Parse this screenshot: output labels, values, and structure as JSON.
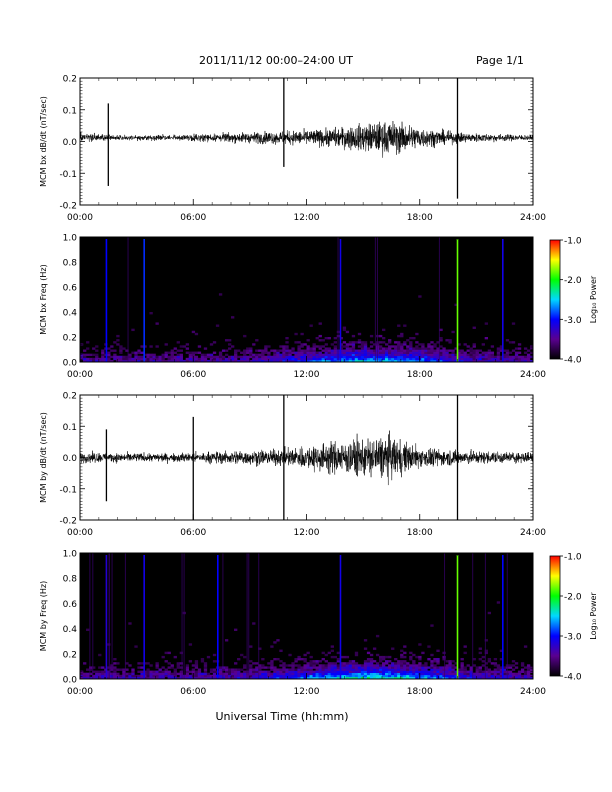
{
  "header": {
    "title": "2011/11/12   00:00–24:00 UT",
    "page": "Page 1/1"
  },
  "xlabel": "Universal Time (hh:mm)",
  "colorbar": {
    "label": "Log₁₀ Power",
    "ticks": [
      "-1.0",
      "-2.0",
      "-3.0",
      "-4.0"
    ],
    "range": [
      -4.0,
      -1.0
    ],
    "colors": [
      "#000000",
      "#5a0090",
      "#0000ff",
      "#00d8ff",
      "#00ff00",
      "#ffff00",
      "#ff0000"
    ]
  },
  "chart_data": [
    {
      "type": "line",
      "ylabel": "MCM bx dB/dt (nT/sec)",
      "x_ticks": [
        "00:00",
        "06:00",
        "12:00",
        "18:00",
        "24:00"
      ],
      "y_ticks": [
        "0.2",
        "0.1",
        "0.0",
        "-0.1",
        "-0.2"
      ],
      "xlim": [
        0,
        24
      ],
      "ylim": [
        -0.2,
        0.2
      ],
      "series": [
        {
          "x": [
            0,
            1.5,
            3,
            4.5,
            6,
            7.5,
            9,
            10.5,
            12,
            13,
            14,
            15,
            16,
            16.5,
            17,
            18,
            19,
            20,
            21,
            22,
            23,
            24
          ],
          "envelope": [
            0.02,
            0.015,
            0.012,
            0.012,
            0.015,
            0.02,
            0.025,
            0.03,
            0.035,
            0.04,
            0.05,
            0.065,
            0.075,
            0.08,
            0.07,
            0.05,
            0.035,
            0.025,
            0.02,
            0.018,
            0.015,
            0.012
          ]
        }
      ],
      "spikes": [
        {
          "x": 1.5,
          "y": -0.14
        },
        {
          "x": 1.5,
          "y": 0.12
        },
        {
          "x": 10.8,
          "y": 0.2
        },
        {
          "x": 10.8,
          "y": -0.08
        },
        {
          "x": 20.0,
          "y": 0.2
        },
        {
          "x": 20.0,
          "y": -0.18
        }
      ]
    },
    {
      "type": "heatmap",
      "ylabel": "MCM bx Freq (Hz)",
      "x_ticks": [
        "00:00",
        "06:00",
        "12:00",
        "18:00",
        "24:00"
      ],
      "y_ticks": [
        "1.0",
        "0.8",
        "0.6",
        "0.4",
        "0.2",
        "0.0"
      ],
      "xlim": [
        0,
        24
      ],
      "ylim": [
        0.0,
        1.0
      ],
      "broadband_lines": [
        {
          "x": 1.4,
          "log_power": -3.0
        },
        {
          "x": 3.4,
          "log_power": -2.9
        },
        {
          "x": 13.8,
          "log_power": -3.1
        },
        {
          "x": 20.0,
          "log_power": -1.8
        },
        {
          "x": 22.4,
          "log_power": -3.1
        }
      ]
    },
    {
      "type": "line",
      "ylabel": "MCM by dB/dt (nT/sec)",
      "x_ticks": [
        "00:00",
        "06:00",
        "12:00",
        "18:00",
        "24:00"
      ],
      "y_ticks": [
        "0.2",
        "0.1",
        "0.0",
        "-0.1",
        "-0.2"
      ],
      "xlim": [
        0,
        24
      ],
      "ylim": [
        -0.2,
        0.2
      ],
      "series": [
        {
          "x": [
            0,
            1.5,
            3,
            4.5,
            6,
            7.5,
            9,
            10.5,
            12,
            13,
            14,
            15,
            16,
            16.5,
            17,
            18,
            19,
            20,
            21,
            22,
            23,
            24
          ],
          "envelope": [
            0.025,
            0.022,
            0.02,
            0.02,
            0.022,
            0.03,
            0.035,
            0.035,
            0.055,
            0.07,
            0.08,
            0.09,
            0.1,
            0.1,
            0.08,
            0.05,
            0.04,
            0.035,
            0.03,
            0.028,
            0.026,
            0.025
          ]
        }
      ],
      "spikes": [
        {
          "x": 1.4,
          "y": 0.09
        },
        {
          "x": 1.4,
          "y": -0.14
        },
        {
          "x": 6.0,
          "y": 0.13
        },
        {
          "x": 6.0,
          "y": -0.2
        },
        {
          "x": 10.8,
          "y": 0.2
        },
        {
          "x": 10.8,
          "y": -0.2
        },
        {
          "x": 20.0,
          "y": 0.2
        },
        {
          "x": 20.0,
          "y": -0.2
        }
      ]
    },
    {
      "type": "heatmap",
      "ylabel": "MCM by Freq (Hz)",
      "x_ticks": [
        "00:00",
        "06:00",
        "12:00",
        "18:00",
        "24:00"
      ],
      "y_ticks": [
        "1.0",
        "0.8",
        "0.6",
        "0.4",
        "0.2",
        "0.0"
      ],
      "xlim": [
        0,
        24
      ],
      "ylim": [
        0.0,
        1.0
      ],
      "broadband_lines": [
        {
          "x": 1.4,
          "log_power": -3.2
        },
        {
          "x": 3.4,
          "log_power": -3.1
        },
        {
          "x": 7.3,
          "log_power": -3.0
        },
        {
          "x": 13.8,
          "log_power": -3.1
        },
        {
          "x": 20.0,
          "log_power": -1.8
        },
        {
          "x": 22.4,
          "log_power": -3.0
        }
      ]
    }
  ]
}
